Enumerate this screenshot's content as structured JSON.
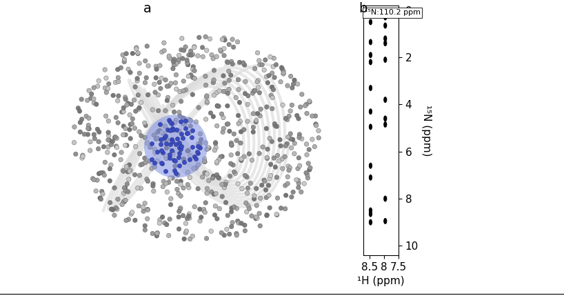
{
  "panel_a": {
    "label": "a"
  },
  "chart_data": {
    "label": "b",
    "type": "scatter",
    "annotation": "¹⁵N:110.2 ppm",
    "x_label": "¹H (ppm)",
    "y_label": "¹⁵N (ppm)",
    "x": [
      8.47,
      8.47,
      8.47,
      8.47,
      8.47,
      8.47,
      8.47,
      8.47,
      8.47,
      8.47,
      8.47,
      8.47,
      7.96,
      7.96,
      7.96,
      7.96,
      7.96,
      7.96,
      7.96,
      7.96,
      7.96,
      7.96
    ],
    "values": [
      0.5,
      1.35,
      1.9,
      2.2,
      3.3,
      4.3,
      4.95,
      6.6,
      7.1,
      8.5,
      8.65,
      9.0,
      0.3,
      0.65,
      1.2,
      1.4,
      2.1,
      3.8,
      4.6,
      4.85,
      8.0,
      8.95
    ],
    "color": "#000000",
    "xlim": [
      8.72,
      7.5
    ],
    "xticks": [
      8.5,
      8,
      7.5
    ],
    "ylim": [
      10.4,
      -0.2
    ],
    "yticks": [
      0,
      2,
      4,
      6,
      8,
      10
    ]
  }
}
